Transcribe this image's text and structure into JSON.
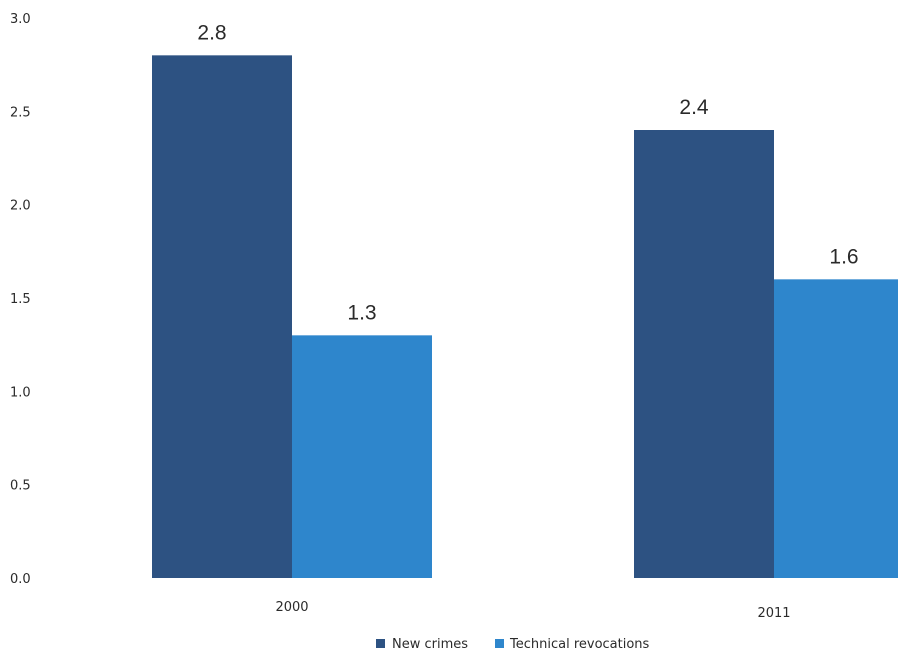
{
  "chart_data": {
    "type": "bar",
    "categories": [
      "2000",
      "2011"
    ],
    "series": [
      {
        "name": "New crimes",
        "values": [
          2.8,
          2.4
        ],
        "color": "#2d5282"
      },
      {
        "name": "Technical revocations",
        "values": [
          1.3,
          1.6
        ],
        "color": "#2e86cc"
      }
    ],
    "yticks": [
      "0.0",
      "0.5",
      "1.0",
      "1.5",
      "2.0",
      "2.5",
      "3.0"
    ],
    "ylim": [
      0,
      3.0
    ],
    "data_labels": [
      [
        "2.8",
        "2.4"
      ],
      [
        "1.3",
        "1.6"
      ]
    ],
    "title": "",
    "xlabel": "",
    "ylabel": "",
    "grid": false,
    "legend": "bottom"
  }
}
